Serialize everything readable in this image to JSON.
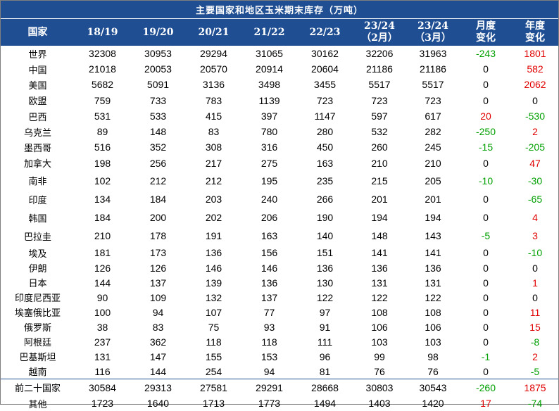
{
  "title": "主要国家和地区玉米期末库存（万吨）",
  "header": {
    "country": "国家",
    "years": [
      "18/19",
      "19/20",
      "20/21",
      "21/22",
      "22/23"
    ],
    "col_feb": [
      "23/24",
      "（2月）"
    ],
    "col_mar": [
      "23/24",
      "（3月）"
    ],
    "monthly_change": [
      "月度",
      "变化"
    ],
    "yearly_change": [
      "年度",
      "变化"
    ]
  },
  "colors": {
    "header_bg": "#1f4e92",
    "increase": "#e00000",
    "decrease": "#00a000"
  },
  "rows": [
    {
      "name": "世界",
      "v": [
        "32308",
        "30953",
        "29294",
        "31065",
        "30162",
        "32206",
        "31963"
      ],
      "m": "-243",
      "y": "1801"
    },
    {
      "name": "中国",
      "v": [
        "21018",
        "20053",
        "20570",
        "20914",
        "20604",
        "21186",
        "21186"
      ],
      "m": "0",
      "y": "582"
    },
    {
      "name": "美国",
      "v": [
        "5682",
        "5091",
        "3136",
        "3498",
        "3455",
        "5517",
        "5517"
      ],
      "m": "0",
      "y": "2062"
    },
    {
      "name": "欧盟",
      "v": [
        "759",
        "733",
        "783",
        "1139",
        "723",
        "723",
        "723"
      ],
      "m": "0",
      "y": "0"
    },
    {
      "name": "巴西",
      "v": [
        "531",
        "533",
        "415",
        "397",
        "1147",
        "597",
        "617"
      ],
      "m": "20",
      "y": "-530"
    },
    {
      "name": "乌克兰",
      "v": [
        "89",
        "148",
        "83",
        "780",
        "280",
        "532",
        "282"
      ],
      "m": "-250",
      "y": "2"
    },
    {
      "name": "墨西哥",
      "v": [
        "516",
        "352",
        "308",
        "316",
        "450",
        "260",
        "245"
      ],
      "m": "-15",
      "y": "-205"
    },
    {
      "name": "加拿大",
      "v": [
        "198",
        "256",
        "217",
        "275",
        "163",
        "210",
        "210"
      ],
      "m": "0",
      "y": "47"
    },
    {
      "name": "南非",
      "v": [
        "102",
        "212",
        "212",
        "195",
        "235",
        "215",
        "205"
      ],
      "m": "-10",
      "y": "-30"
    },
    {
      "name": "印度",
      "v": [
        "134",
        "184",
        "203",
        "240",
        "266",
        "201",
        "201"
      ],
      "m": "0",
      "y": "-65"
    },
    {
      "name": "韩国",
      "v": [
        "184",
        "200",
        "202",
        "206",
        "190",
        "194",
        "194"
      ],
      "m": "0",
      "y": "4"
    },
    {
      "name": "巴拉圭",
      "v": [
        "210",
        "178",
        "191",
        "163",
        "140",
        "148",
        "143"
      ],
      "m": "-5",
      "y": "3"
    },
    {
      "name": "埃及",
      "v": [
        "181",
        "173",
        "136",
        "156",
        "151",
        "141",
        "141"
      ],
      "m": "0",
      "y": "-10"
    },
    {
      "name": "伊朗",
      "v": [
        "126",
        "126",
        "146",
        "146",
        "136",
        "136",
        "136"
      ],
      "m": "0",
      "y": "0"
    },
    {
      "name": "日本",
      "v": [
        "144",
        "137",
        "139",
        "136",
        "130",
        "131",
        "131"
      ],
      "m": "0",
      "y": "1"
    },
    {
      "name": "印度尼西亚",
      "v": [
        "90",
        "109",
        "132",
        "137",
        "122",
        "122",
        "122"
      ],
      "m": "0",
      "y": "0"
    },
    {
      "name": "埃塞俄比亚",
      "v": [
        "100",
        "94",
        "107",
        "77",
        "97",
        "108",
        "108"
      ],
      "m": "0",
      "y": "11"
    },
    {
      "name": "俄罗斯",
      "v": [
        "38",
        "83",
        "75",
        "93",
        "91",
        "106",
        "106"
      ],
      "m": "0",
      "y": "15"
    },
    {
      "name": "阿根廷",
      "v": [
        "237",
        "362",
        "118",
        "118",
        "111",
        "103",
        "103"
      ],
      "m": "0",
      "y": "-8"
    },
    {
      "name": "巴基斯坦",
      "v": [
        "131",
        "147",
        "155",
        "153",
        "96",
        "99",
        "98"
      ],
      "m": "-1",
      "y": "2"
    },
    {
      "name": "越南",
      "v": [
        "116",
        "144",
        "254",
        "94",
        "81",
        "76",
        "76"
      ],
      "m": "0",
      "y": "-5"
    },
    {
      "name": "前二十国家",
      "v": [
        "30584",
        "29313",
        "27581",
        "29291",
        "28668",
        "30803",
        "30543"
      ],
      "m": "-260",
      "y": "1875"
    },
    {
      "name": "其他",
      "v": [
        "1723",
        "1640",
        "1713",
        "1773",
        "1494",
        "1403",
        "1420"
      ],
      "m": "17",
      "y": "-74"
    }
  ]
}
